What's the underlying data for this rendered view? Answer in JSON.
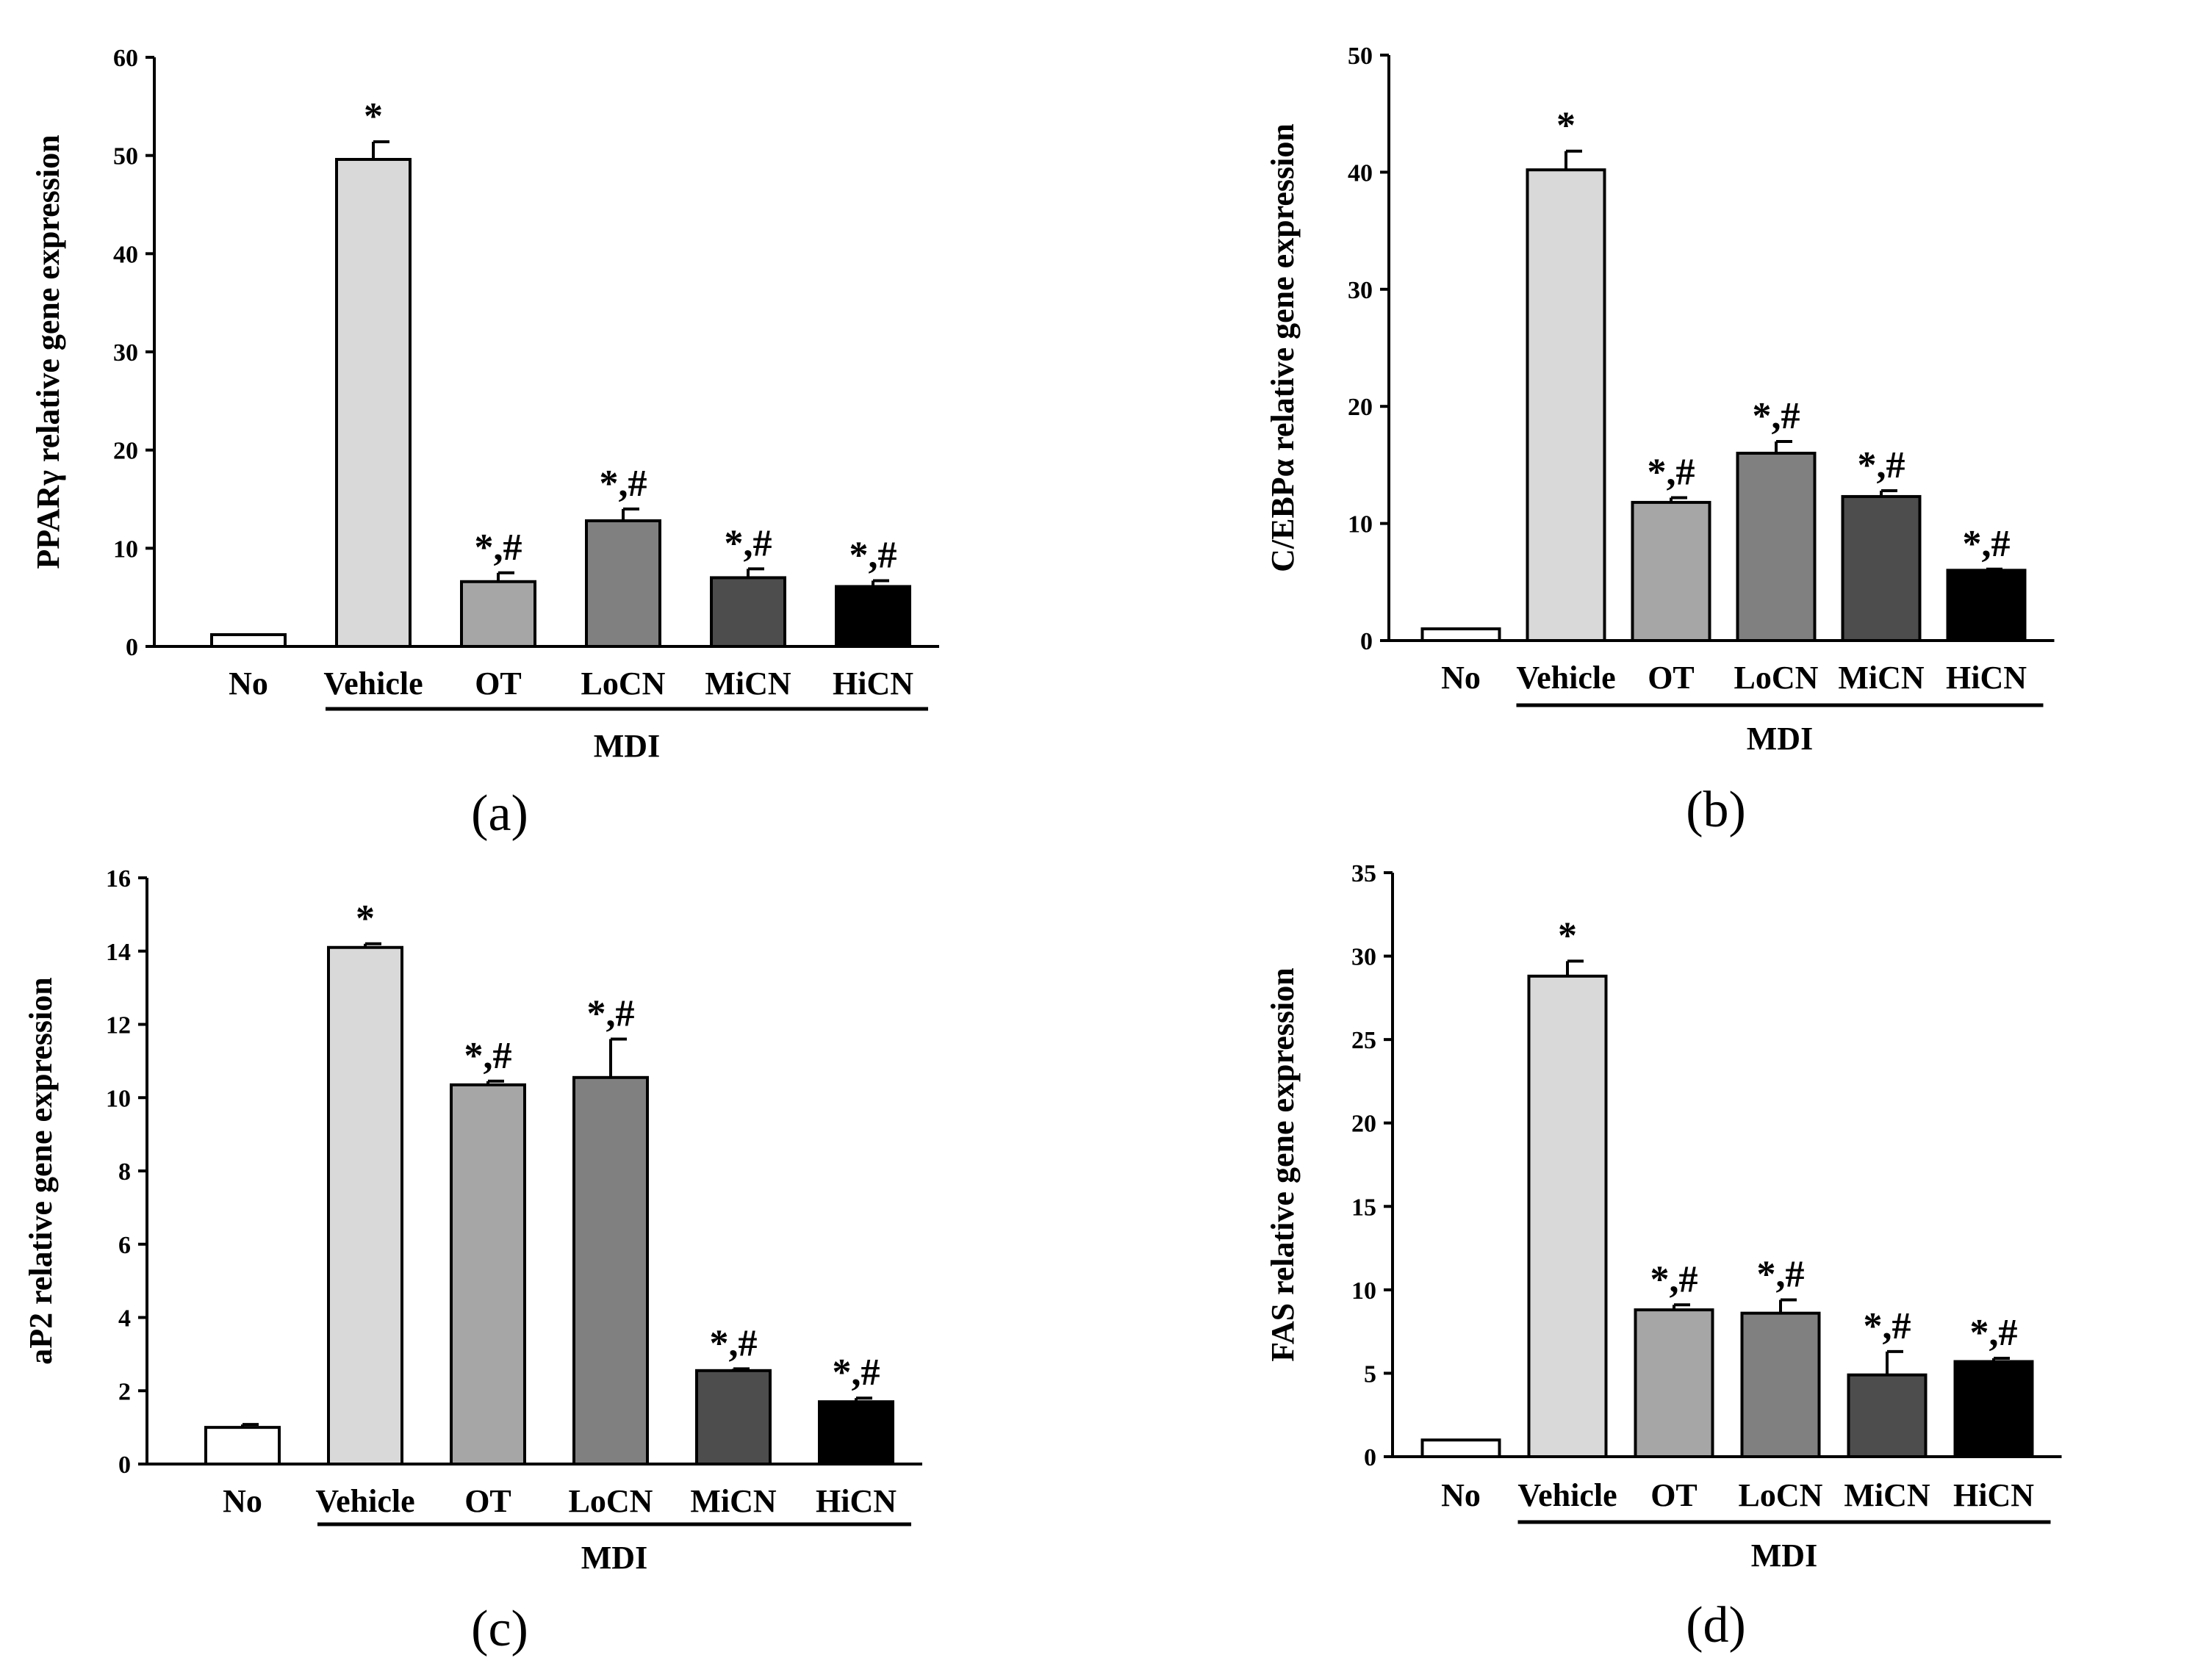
{
  "figure": {
    "bar_colors": [
      "#ffffff",
      "#d9d9d9",
      "#a6a6a6",
      "#808080",
      "#4d4d4d",
      "#000000"
    ]
  },
  "chart_data": [
    {
      "type": "bar",
      "panel": "a",
      "panel_label": "(a)",
      "ylabel": "PPARγ relative gene expression",
      "ylim": [
        0,
        60
      ],
      "yticks": [
        0,
        10,
        20,
        30,
        40,
        50,
        60
      ],
      "categories": [
        "No",
        "Vehicle",
        "OT",
        "LoCN",
        "MiCN",
        "HiCN"
      ],
      "group_label": "MDI",
      "values": [
        1.2,
        49.6,
        6.6,
        12.8,
        7.0,
        6.1
      ],
      "errors": [
        0.0,
        1.8,
        0.9,
        1.2,
        0.9,
        0.6
      ],
      "annotations": [
        "",
        "*",
        "*,#",
        "*,#",
        "*,#",
        "*,#"
      ]
    },
    {
      "type": "bar",
      "panel": "b",
      "panel_label": "(b)",
      "ylabel": "C/EBPα relative gene expression",
      "ylim": [
        0,
        50
      ],
      "yticks": [
        0,
        10,
        20,
        30,
        40,
        50
      ],
      "categories": [
        "No",
        "Vehicle",
        "OT",
        "LoCN",
        "MiCN",
        "HiCN"
      ],
      "group_label": "MDI",
      "values": [
        1.0,
        40.2,
        11.8,
        16.0,
        12.3,
        6.0
      ],
      "errors": [
        0.0,
        1.6,
        0.4,
        1.0,
        0.5,
        0.1
      ],
      "annotations": [
        "",
        "*",
        "*,#",
        "*,#",
        "*,#",
        "*,#"
      ]
    },
    {
      "type": "bar",
      "panel": "c",
      "panel_label": "(c)",
      "ylabel": "aP2 relative gene expression",
      "ylim": [
        0,
        16
      ],
      "yticks": [
        0,
        2,
        4,
        6,
        8,
        10,
        12,
        14,
        16
      ],
      "categories": [
        "No",
        "Vehicle",
        "OT",
        "LoCN",
        "MiCN",
        "HiCN"
      ],
      "group_label": "MDI",
      "values": [
        1.0,
        14.1,
        10.35,
        10.55,
        2.55,
        1.7
      ],
      "errors": [
        0.08,
        0.1,
        0.1,
        1.05,
        0.05,
        0.1
      ],
      "annotations": [
        "",
        "*",
        "*,#",
        "*,#",
        "*,#",
        "*,#"
      ]
    },
    {
      "type": "bar",
      "panel": "d",
      "panel_label": "(d)",
      "ylabel": "FAS relative gene expression",
      "ylim": [
        0,
        35
      ],
      "yticks": [
        0,
        5,
        10,
        15,
        20,
        25,
        30,
        35
      ],
      "categories": [
        "No",
        "Vehicle",
        "OT",
        "LoCN",
        "MiCN",
        "HiCN"
      ],
      "group_label": "MDI",
      "values": [
        1.0,
        28.8,
        8.8,
        8.6,
        4.9,
        5.7
      ],
      "errors": [
        0.0,
        0.9,
        0.3,
        0.8,
        1.4,
        0.2
      ],
      "annotations": [
        "",
        "*",
        "*,#",
        "*,#",
        "*,#",
        "*,#"
      ]
    }
  ]
}
